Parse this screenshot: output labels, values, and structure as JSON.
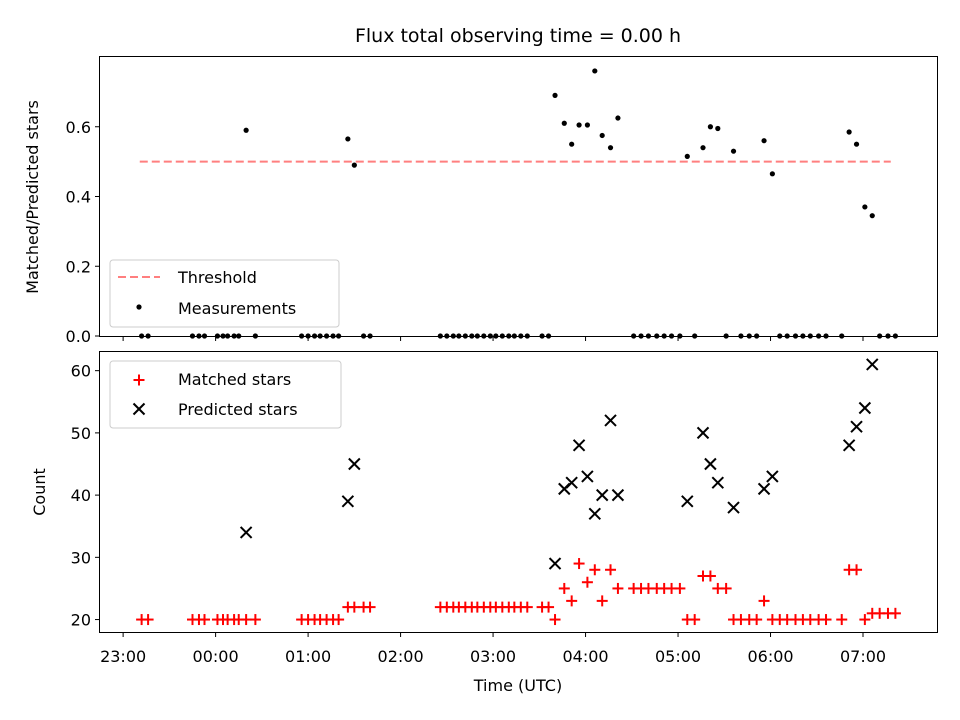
{
  "title": "Flux total observing time = 0.00 h",
  "chart_data": [
    {
      "type": "line",
      "panel": "top",
      "ylabel": "Matched/Predicted stars",
      "xlabel": "",
      "ylim": [
        0,
        0.8
      ],
      "yticks": [
        0.0,
        0.2,
        0.4,
        0.6
      ],
      "ytick_labels": [
        "0.0",
        "0.2",
        "0.4",
        "0.6"
      ],
      "xlim_h": [
        -1.25,
        7.8
      ],
      "legend_position": "lower-left",
      "grid": false,
      "series": [
        {
          "name": "Threshold",
          "style": "dashed-line",
          "color": "#ff7f7f",
          "x_h": [
            -0.82,
            7.3
          ],
          "y": [
            0.5,
            0.5
          ]
        },
        {
          "name": "Measurements",
          "style": "dots",
          "color": "#000000",
          "x_h": [
            -0.8,
            -0.73,
            -0.25,
            -0.18,
            -0.12,
            0.02,
            0.08,
            0.13,
            0.2,
            0.25,
            0.33,
            0.43,
            0.93,
            1.0,
            1.07,
            1.13,
            1.2,
            1.27,
            1.33,
            1.43,
            1.5,
            1.6,
            1.67,
            2.43,
            2.5,
            2.57,
            2.63,
            2.7,
            2.77,
            2.83,
            2.9,
            2.97,
            3.03,
            3.1,
            3.17,
            3.23,
            3.3,
            3.37,
            3.53,
            3.6,
            3.67,
            3.77,
            3.85,
            3.93,
            4.02,
            4.1,
            4.18,
            4.27,
            4.35,
            4.52,
            4.6,
            4.68,
            4.77,
            4.85,
            4.93,
            5.02,
            5.1,
            5.18,
            5.27,
            5.35,
            5.43,
            5.52,
            5.6,
            5.68,
            5.77,
            5.85,
            5.93,
            6.02,
            6.1,
            6.18,
            6.27,
            6.35,
            6.43,
            6.52,
            6.6,
            6.77,
            6.85,
            6.93,
            7.02,
            7.1,
            7.18,
            7.27,
            7.35
          ],
          "y": [
            0,
            0,
            0,
            0,
            0,
            0,
            0,
            0,
            0,
            0,
            0.59,
            0,
            0,
            0,
            0,
            0,
            0,
            0,
            0,
            0.565,
            0.49,
            0,
            0,
            0,
            0,
            0,
            0,
            0,
            0,
            0,
            0,
            0,
            0,
            0,
            0,
            0,
            0,
            0,
            0,
            0,
            0.69,
            0.61,
            0.55,
            0.605,
            0.605,
            0.76,
            0.575,
            0.54,
            0.625,
            0,
            0,
            0,
            0,
            0,
            0,
            0,
            0.515,
            0,
            0.54,
            0.6,
            0.595,
            0,
            0.53,
            0,
            0,
            0,
            0.56,
            0.465,
            0,
            0,
            0,
            0,
            0,
            0,
            0,
            0,
            0.585,
            0.55,
            0.37,
            0.345,
            0,
            0,
            0
          ]
        }
      ]
    },
    {
      "type": "scatter",
      "panel": "bottom",
      "ylabel": "Count",
      "xlabel": "Time (UTC)",
      "ylim": [
        18,
        63
      ],
      "yticks": [
        20,
        30,
        40,
        50,
        60
      ],
      "ytick_labels": [
        "20",
        "30",
        "40",
        "50",
        "60"
      ],
      "xlim_h": [
        -1.25,
        7.8
      ],
      "xticks_h": [
        -1,
        0,
        1,
        2,
        3,
        4,
        5,
        6,
        7
      ],
      "xtick_labels": [
        "23:00",
        "00:00",
        "01:00",
        "02:00",
        "03:00",
        "04:00",
        "05:00",
        "06:00",
        "07:00"
      ],
      "legend_position": "upper-left",
      "grid": false,
      "series": [
        {
          "name": "Matched stars",
          "style": "plus",
          "color": "#ff0000",
          "x_h": [
            -0.8,
            -0.73,
            -0.25,
            -0.18,
            -0.12,
            0.02,
            0.08,
            0.13,
            0.2,
            0.25,
            0.33,
            0.43,
            0.93,
            1.0,
            1.07,
            1.13,
            1.2,
            1.27,
            1.33,
            1.43,
            1.5,
            1.6,
            1.67,
            2.43,
            2.5,
            2.57,
            2.63,
            2.7,
            2.77,
            2.83,
            2.9,
            2.97,
            3.03,
            3.1,
            3.17,
            3.23,
            3.3,
            3.37,
            3.53,
            3.6,
            3.67,
            3.77,
            3.85,
            3.93,
            4.02,
            4.1,
            4.18,
            4.27,
            4.35,
            4.52,
            4.6,
            4.68,
            4.77,
            4.85,
            4.93,
            5.02,
            5.1,
            5.18,
            5.27,
            5.35,
            5.43,
            5.52,
            5.6,
            5.68,
            5.77,
            5.85,
            5.93,
            6.02,
            6.1,
            6.18,
            6.27,
            6.35,
            6.43,
            6.52,
            6.6,
            6.77,
            6.85,
            6.93,
            7.02,
            7.1,
            7.18,
            7.27,
            7.35
          ],
          "y": [
            20,
            20,
            20,
            20,
            20,
            20,
            20,
            20,
            20,
            20,
            20,
            20,
            20,
            20,
            20,
            20,
            20,
            20,
            20,
            22,
            22,
            22,
            22,
            22,
            22,
            22,
            22,
            22,
            22,
            22,
            22,
            22,
            22,
            22,
            22,
            22,
            22,
            22,
            22,
            22,
            20,
            25,
            23,
            29,
            26,
            28,
            23,
            28,
            25,
            25,
            25,
            25,
            25,
            25,
            25,
            25,
            20,
            20,
            27,
            27,
            25,
            25,
            20,
            20,
            20,
            20,
            23,
            20,
            20,
            20,
            20,
            20,
            20,
            20,
            20,
            20,
            28,
            28,
            20,
            21,
            21,
            21,
            21
          ]
        },
        {
          "name": "Predicted stars",
          "style": "x",
          "color": "#000000",
          "x_h": [
            0.33,
            1.43,
            1.5,
            3.67,
            3.77,
            3.85,
            3.93,
            4.02,
            4.1,
            4.18,
            4.27,
            4.35,
            5.1,
            5.27,
            5.35,
            5.43,
            5.6,
            5.93,
            6.02,
            6.85,
            6.93,
            7.02,
            7.1
          ],
          "y": [
            34,
            39,
            45,
            29,
            41,
            42,
            48,
            43,
            37,
            40,
            52,
            40,
            39,
            50,
            45,
            42,
            38,
            41,
            43,
            48,
            51,
            54,
            61
          ]
        }
      ]
    }
  ]
}
